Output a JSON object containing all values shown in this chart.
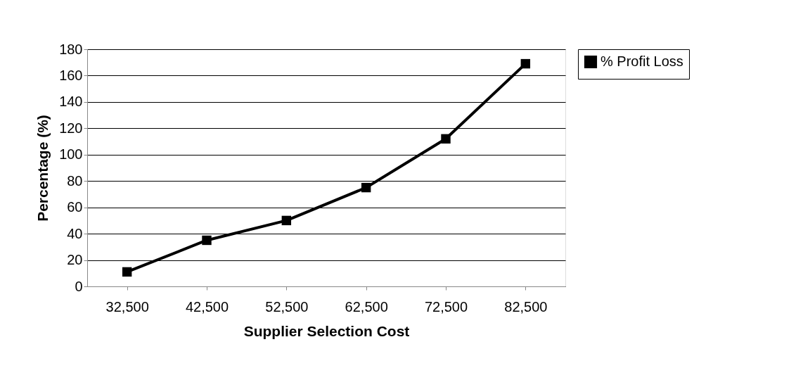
{
  "chart_data": {
    "type": "line",
    "xlabel": "Supplier Selection Cost",
    "ylabel": "Percentage (%)",
    "categories": [
      "32,500",
      "42,500",
      "52,500",
      "62,500",
      "72,500",
      "82,500"
    ],
    "series": [
      {
        "name": "% Profit Loss",
        "color": "#000000",
        "values": [
          11,
          35,
          50,
          75,
          112,
          169
        ]
      }
    ],
    "ylim": [
      0,
      180
    ],
    "yticks": [
      0,
      20,
      40,
      60,
      80,
      100,
      120,
      140,
      160,
      180
    ],
    "grid": "y",
    "legend": "right",
    "marker": "square",
    "line_style": "solid"
  }
}
